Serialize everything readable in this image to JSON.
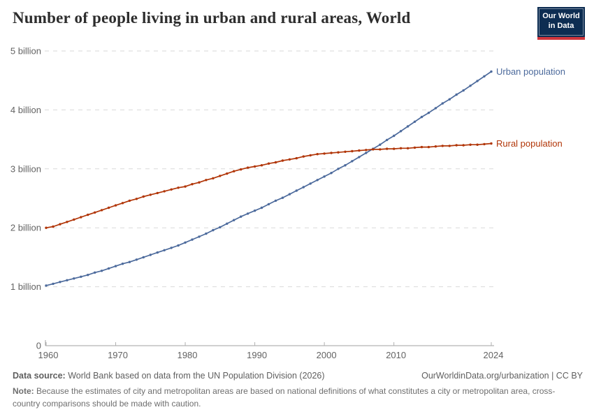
{
  "header": {
    "title": "Number of people living in urban and rural areas, World",
    "logo": {
      "line1": "Our World",
      "line2": "in Data"
    }
  },
  "chart_data": {
    "type": "line",
    "title": "Number of people living in urban and rural areas, World",
    "xlabel": "",
    "ylabel": "",
    "xlim": [
      1960,
      2024
    ],
    "ylim": [
      0,
      5
    ],
    "grid": "horizontal-dashed",
    "legend_position": "line-end-labels",
    "xticks": [
      1960,
      1970,
      1980,
      1990,
      2000,
      2010,
      2024
    ],
    "yticks": [
      0,
      1,
      2,
      3,
      4,
      5
    ],
    "ytick_labels": [
      "0",
      "1 billion",
      "2 billion",
      "3 billion",
      "4 billion",
      "5 billion"
    ],
    "x": [
      1960,
      1961,
      1962,
      1963,
      1964,
      1965,
      1966,
      1967,
      1968,
      1969,
      1970,
      1971,
      1972,
      1973,
      1974,
      1975,
      1976,
      1977,
      1978,
      1979,
      1980,
      1981,
      1982,
      1983,
      1984,
      1985,
      1986,
      1987,
      1988,
      1989,
      1990,
      1991,
      1992,
      1993,
      1994,
      1995,
      1996,
      1997,
      1998,
      1999,
      2000,
      2001,
      2002,
      2003,
      2004,
      2005,
      2006,
      2007,
      2008,
      2009,
      2010,
      2011,
      2012,
      2013,
      2014,
      2015,
      2016,
      2017,
      2018,
      2019,
      2020,
      2021,
      2022,
      2023,
      2024
    ],
    "unit": "billion people",
    "series": [
      {
        "id": "urban",
        "name": "Urban population",
        "color": "#4C6A9C",
        "values": [
          1.02,
          1.05,
          1.08,
          1.11,
          1.14,
          1.17,
          1.2,
          1.24,
          1.27,
          1.31,
          1.35,
          1.39,
          1.42,
          1.46,
          1.5,
          1.54,
          1.58,
          1.62,
          1.66,
          1.7,
          1.75,
          1.8,
          1.85,
          1.9,
          1.96,
          2.01,
          2.07,
          2.13,
          2.19,
          2.24,
          2.29,
          2.34,
          2.4,
          2.46,
          2.51,
          2.57,
          2.63,
          2.69,
          2.75,
          2.81,
          2.87,
          2.93,
          3.0,
          3.06,
          3.13,
          3.2,
          3.27,
          3.34,
          3.41,
          3.49,
          3.56,
          3.64,
          3.72,
          3.8,
          3.88,
          3.95,
          4.03,
          4.11,
          4.18,
          4.26,
          4.33,
          4.41,
          4.49,
          4.57,
          4.65
        ]
      },
      {
        "id": "rural",
        "name": "Rural population",
        "color": "#B13507",
        "values": [
          2.0,
          2.02,
          2.06,
          2.1,
          2.14,
          2.18,
          2.22,
          2.26,
          2.3,
          2.34,
          2.38,
          2.42,
          2.46,
          2.49,
          2.53,
          2.56,
          2.59,
          2.62,
          2.65,
          2.68,
          2.7,
          2.74,
          2.77,
          2.81,
          2.84,
          2.88,
          2.92,
          2.96,
          2.99,
          3.02,
          3.04,
          3.06,
          3.09,
          3.11,
          3.14,
          3.16,
          3.18,
          3.21,
          3.23,
          3.25,
          3.26,
          3.27,
          3.28,
          3.29,
          3.3,
          3.31,
          3.32,
          3.33,
          3.33,
          3.34,
          3.34,
          3.35,
          3.35,
          3.36,
          3.37,
          3.37,
          3.38,
          3.39,
          3.39,
          3.4,
          3.4,
          3.41,
          3.41,
          3.42,
          3.43
        ]
      }
    ],
    "style": {
      "grid_color": "#d9d9d9",
      "axis_line_color": "#a0a0a0",
      "tick_color": "#b0b0b0",
      "tick_label_color": "#636363"
    }
  },
  "footer": {
    "datasource_label": "Data source:",
    "datasource_text": " World Bank based on data from the UN Population Division (2026)",
    "link_text": "OurWorldinData.org/urbanization | CC BY",
    "note_label": "Note:",
    "note_text": " Because the estimates of city and metropolitan areas are based on national definitions of what constitutes a city or metropolitan area, cross-country comparisons should be made with caution."
  }
}
